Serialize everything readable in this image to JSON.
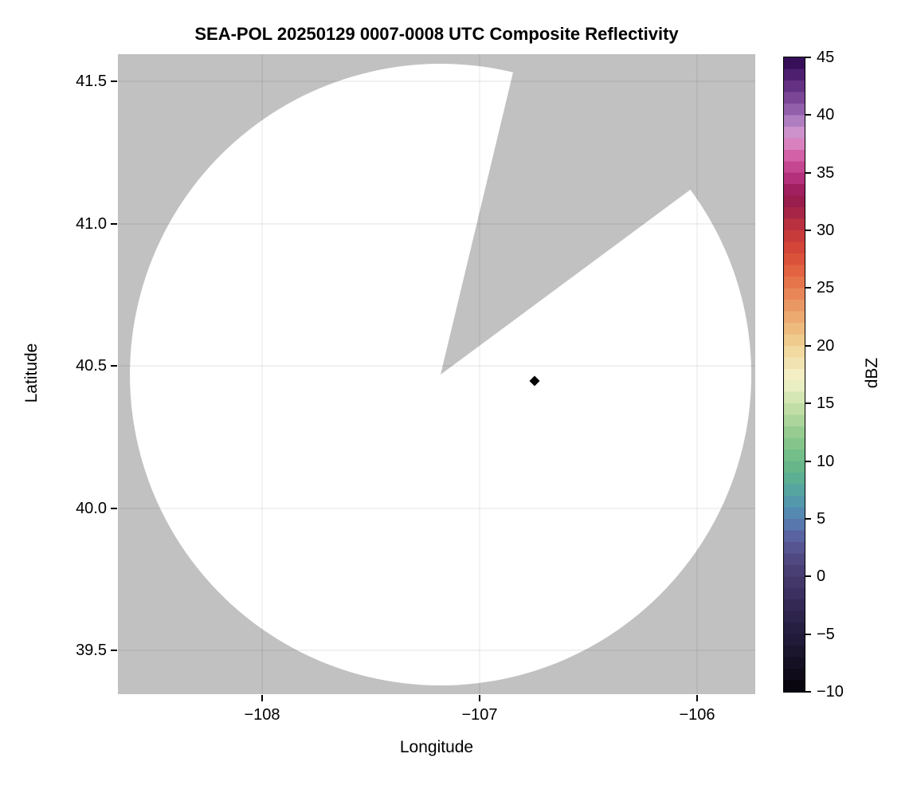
{
  "figure": {
    "title": "SEA-POL 20250129 0007-0008 UTC Composite Reflectivity"
  },
  "axes": {
    "xlabel": "Longitude",
    "ylabel": "Latitude",
    "xtick_labels": [
      "−108",
      "−107",
      "−106"
    ],
    "ytick_labels": [
      "41.5",
      "41.0",
      "40.5",
      "40.0",
      "39.5"
    ]
  },
  "colorbar": {
    "label": "dBZ",
    "tick_labels": [
      "45",
      "40",
      "35",
      "30",
      "25",
      "20",
      "15",
      "10",
      "5",
      "0",
      "−5",
      "−10"
    ]
  },
  "chart_data": {
    "type": "heatmap",
    "title": "SEA-POL 20250129 0007-0008 UTC Composite Reflectivity",
    "xlabel": "Longitude",
    "ylabel": "Latitude",
    "xlim": [
      -108.66,
      -105.73
    ],
    "ylim": [
      39.35,
      41.58
    ],
    "xticks": [
      -108,
      -107,
      -106
    ],
    "yticks": [
      39.5,
      40.0,
      40.5,
      41.0,
      41.5
    ],
    "grid": true,
    "colorbar": {
      "label": "dBZ",
      "vmin": -10,
      "vmax": 45,
      "ticks": [
        45,
        40,
        35,
        30,
        25,
        20,
        15,
        10,
        5,
        0,
        -5,
        -10
      ],
      "discrete_step_dbz": 1
    },
    "radar_coverage": {
      "center_lon": -107.17,
      "center_lat": 40.49,
      "radius_deg_lat": 1.09,
      "blocked_sector_azimuth_deg": [
        13.5,
        53.5
      ],
      "echoes": "none visible - coverage area blank (below -10 dBZ)"
    },
    "no_data_color": "#c1c1c1",
    "coverage_color": "#ffffff",
    "gridline_color": "rgba(0,0,0,0.09)",
    "marker": {
      "lon": -106.74,
      "lat": 40.45,
      "symbol": "diamond",
      "color": "#000000"
    },
    "colormap_stops": [
      [
        -10,
        "#050309"
      ],
      [
        -8,
        "#130d20"
      ],
      [
        -6,
        "#1e1733"
      ],
      [
        -4,
        "#2a2147"
      ],
      [
        -2,
        "#372c5a"
      ],
      [
        0,
        "#453a6d"
      ],
      [
        2,
        "#544e88"
      ],
      [
        3,
        "#595a9b"
      ],
      [
        4,
        "#5a6ca7"
      ],
      [
        5,
        "#5581b1"
      ],
      [
        6,
        "#5292b0"
      ],
      [
        7,
        "#549fa6"
      ],
      [
        8,
        "#58ab99"
      ],
      [
        9,
        "#61b28d"
      ],
      [
        10,
        "#6cba87"
      ],
      [
        12,
        "#8dc88d"
      ],
      [
        14,
        "#b5d99e"
      ],
      [
        16,
        "#e0ebbb"
      ],
      [
        17,
        "#f2f1ca"
      ],
      [
        18,
        "#f3eabc"
      ],
      [
        20,
        "#f0d395"
      ],
      [
        22,
        "#edb176"
      ],
      [
        24,
        "#e98f5d"
      ],
      [
        25,
        "#e77d51"
      ],
      [
        26,
        "#e56b45"
      ],
      [
        28,
        "#d84a38"
      ],
      [
        29,
        "#cd3f39"
      ],
      [
        30,
        "#c1363d"
      ],
      [
        31,
        "#b02b44"
      ],
      [
        32,
        "#9e204a"
      ],
      [
        33,
        "#941a50"
      ],
      [
        34,
        "#ad256f"
      ],
      [
        35,
        "#bd3a85"
      ],
      [
        36,
        "#cc539c"
      ],
      [
        37,
        "#d76fb2"
      ],
      [
        38,
        "#da92ca"
      ],
      [
        39,
        "#c08fcc"
      ],
      [
        40,
        "#9e6cb4"
      ],
      [
        41,
        "#86519f"
      ],
      [
        42,
        "#6f3b8d"
      ],
      [
        43,
        "#592679"
      ],
      [
        44,
        "#421564"
      ],
      [
        45,
        "#2c094e"
      ]
    ]
  }
}
